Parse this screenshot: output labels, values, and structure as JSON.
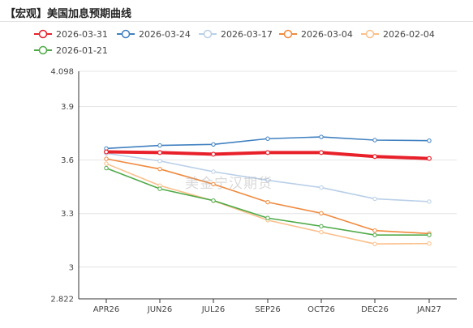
{
  "header": {
    "title": "【宏观】美国加息预期曲线"
  },
  "watermark": "美金宁汉期货",
  "chart_data": {
    "type": "line",
    "title": "【宏观】美国加息预期曲线",
    "xlabel": "",
    "ylabel": "",
    "categories": [
      "APR26",
      "JUN26",
      "JUL26",
      "SEP26",
      "OCT26",
      "DEC26",
      "JAN27"
    ],
    "ylim": [
      2.822,
      4.098
    ],
    "yticks": [
      "4.098",
      "3.9",
      "3.6",
      "3.3",
      "3",
      "2.822"
    ],
    "grid": true,
    "legend_position": "top-left",
    "series": [
      {
        "name": "2026-03-31",
        "color": "#e8202a",
        "emphasis": true,
        "values": [
          3.646,
          3.642,
          3.633,
          3.642,
          3.642,
          3.62,
          3.609
        ]
      },
      {
        "name": "2026-03-24",
        "color": "#3f80c0",
        "emphasis": false,
        "values": [
          3.665,
          3.682,
          3.688,
          3.72,
          3.73,
          3.712,
          3.709
        ]
      },
      {
        "name": "2026-03-17",
        "color": "#b9cfe8",
        "emphasis": false,
        "values": [
          3.638,
          3.595,
          3.535,
          3.487,
          3.446,
          3.383,
          3.367
        ]
      },
      {
        "name": "2026-03-04",
        "color": "#f08a3e",
        "emphasis": false,
        "values": [
          3.607,
          3.55,
          3.465,
          3.364,
          3.302,
          3.205,
          3.188
        ]
      },
      {
        "name": "2026-02-04",
        "color": "#fbbf8a",
        "emphasis": false,
        "values": [
          3.58,
          3.457,
          3.372,
          3.263,
          3.196,
          3.13,
          3.132
        ]
      },
      {
        "name": "2026-01-21",
        "color": "#4faa48",
        "emphasis": false,
        "values": [
          3.555,
          3.439,
          3.373,
          3.275,
          3.229,
          3.18,
          3.18
        ]
      }
    ]
  }
}
